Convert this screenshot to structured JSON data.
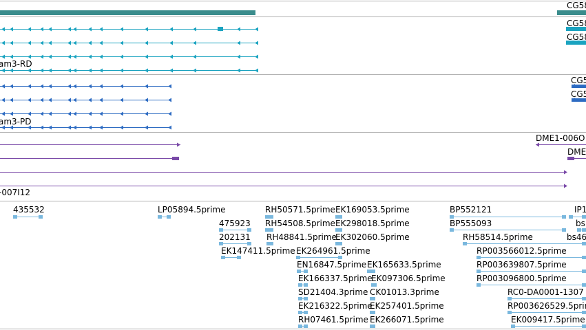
{
  "colors": {
    "gene_bar": "#3a8c8c",
    "track_teal": "#1aa3c0",
    "track_blue": "#2d6bc2",
    "track_purple": "#7a4aa8",
    "est": "#7ab8de",
    "divider": "#b0b0b0"
  },
  "labels": {
    "cg_top_1": "CG58",
    "cg_top_2": "CG58",
    "cg_top_3": "CG58",
    "am3_rd": "am3-RD",
    "cg_mid_1": "CG5",
    "cg_mid_2": "CG5",
    "am3_pd": "am3-PD",
    "dme1_a": "DME1-006O",
    "dme1_b": "DME",
    "clone_007": "-007I12"
  },
  "ests": [
    "435532",
    "LP05894.5prime",
    "RH50571.5prime",
    "EK169053.5prime",
    "BP552121",
    "IP1",
    "475923",
    "RH54508.5prime",
    "EK298018.5prime",
    "BP555093",
    "bs",
    "202131",
    "RH48841.5prime",
    "EK302060.5prime",
    "RH58514.5prime",
    "bs46",
    "EK147411.5prime",
    "EK264961.5prime",
    "RP003566012.5prime",
    "EN16847.5prime",
    "EK165633.5prime",
    "RP003639807.5prime",
    "EK166337.5prime",
    "EK097306.5prime",
    "RP003096800.5prime",
    "SD21404.3prime",
    "CK01013.3prime",
    "RC0-DA0001-1307",
    "EK216322.5prime",
    "EK257401.5prime",
    "RP003626529.5prime",
    "RH07461.5prime",
    "EK266071.5prime",
    "EK009417.5prime"
  ]
}
